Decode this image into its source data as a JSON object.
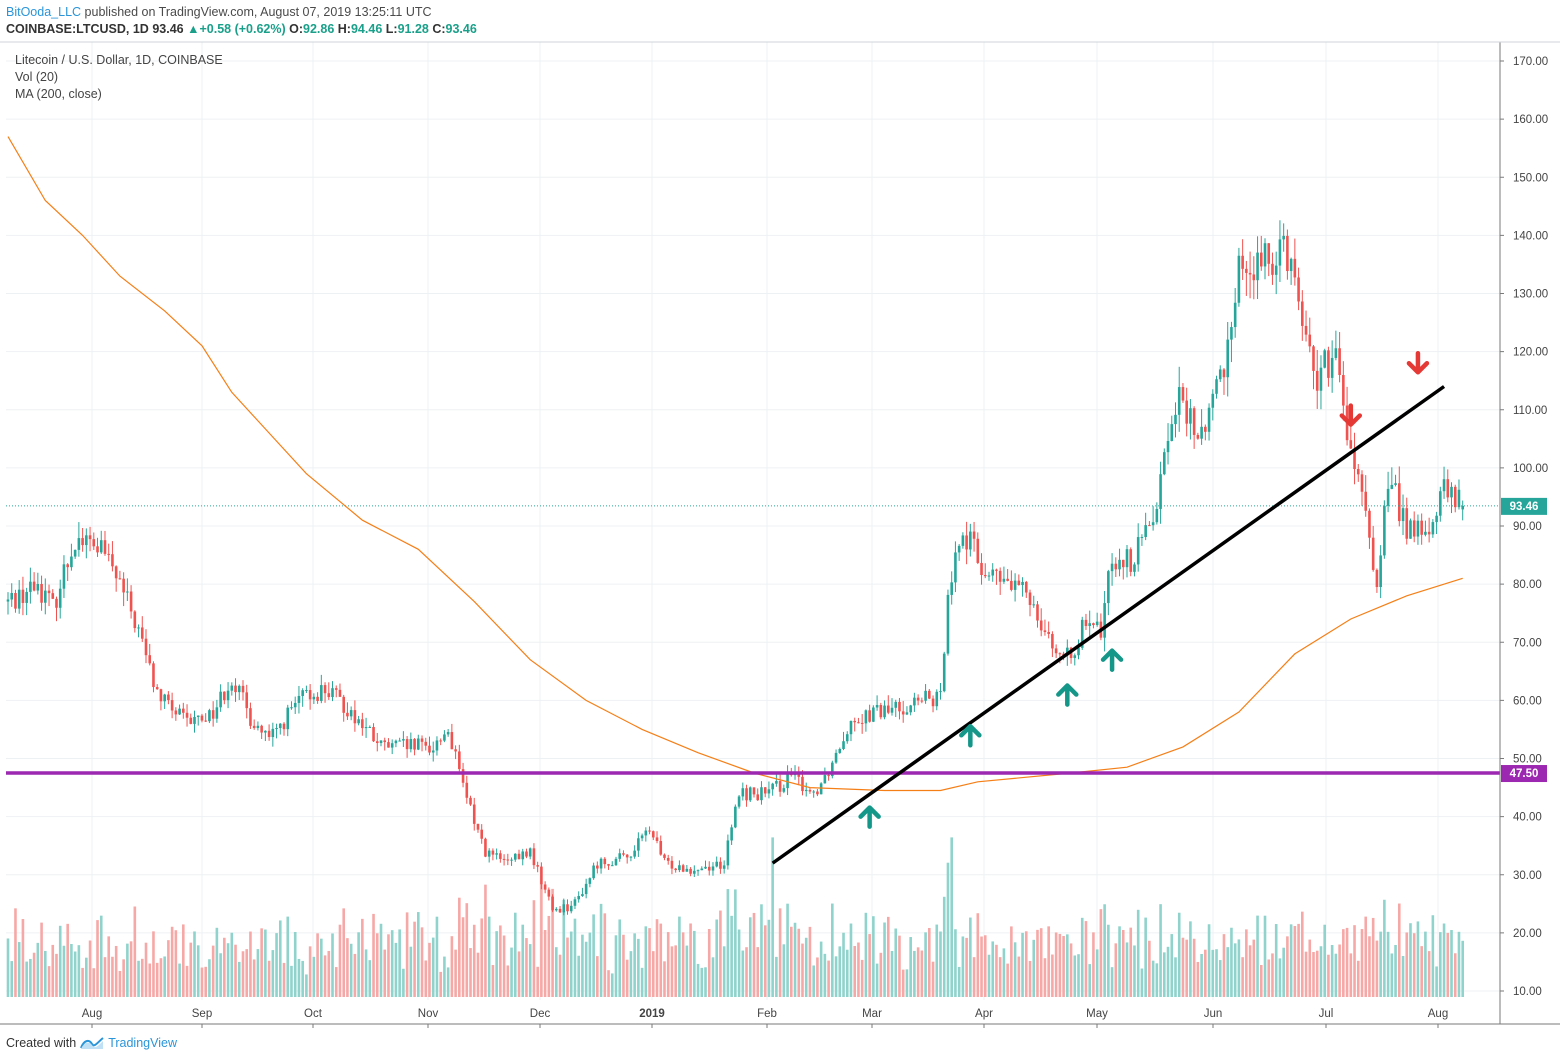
{
  "header": {
    "author": "BitOoda_LLC",
    "published_text": "published on TradingView.com, August 07, 2019 13:25:11 UTC",
    "symbol": "COINBASE:LTCUSD, 1D",
    "last": "93.46",
    "change": "+0.58 (+0.62%)",
    "open_label": "O:",
    "open": "92.86",
    "high_label": "H:",
    "high": "94.46",
    "low_label": "L:",
    "low": "91.28",
    "close_label": "C:",
    "close": "93.46"
  },
  "legend": {
    "series": "Litecoin / U.S. Dollar, 1D, COINBASE",
    "volume": "Vol (20)",
    "ma": "MA (200, close)"
  },
  "footer": {
    "created_with": "Created with",
    "brand": "TradingView"
  },
  "chart_data": {
    "type": "candlestick",
    "price_axis": {
      "min": 10,
      "max": 170,
      "ticks": [
        10,
        20,
        30,
        40,
        50,
        60,
        70,
        80,
        90,
        100,
        110,
        120,
        130,
        140,
        150,
        160,
        170
      ]
    },
    "x_labels": [
      "Aug",
      "Sep",
      "Oct",
      "Nov",
      "Dec",
      "2019",
      "Feb",
      "Mar",
      "Apr",
      "May",
      "Jun",
      "Jul",
      "Aug"
    ],
    "grid": true,
    "last_price_label": "93.46",
    "support_label": "47.50",
    "support_level": 47.5,
    "anchors": [
      {
        "t": 0,
        "p": 77
      },
      {
        "t": 8,
        "p": 80
      },
      {
        "t": 12,
        "p": 76
      },
      {
        "t": 18,
        "p": 88
      },
      {
        "t": 25,
        "p": 86
      },
      {
        "t": 30,
        "p": 80
      },
      {
        "t": 35,
        "p": 72
      },
      {
        "t": 40,
        "p": 61
      },
      {
        "t": 48,
        "p": 56
      },
      {
        "t": 55,
        "p": 58
      },
      {
        "t": 60,
        "p": 64
      },
      {
        "t": 65,
        "p": 57
      },
      {
        "t": 70,
        "p": 53
      },
      {
        "t": 78,
        "p": 60
      },
      {
        "t": 85,
        "p": 62
      },
      {
        "t": 92,
        "p": 58
      },
      {
        "t": 100,
        "p": 52
      },
      {
        "t": 108,
        "p": 52
      },
      {
        "t": 114,
        "p": 52
      },
      {
        "t": 118,
        "p": 55
      },
      {
        "t": 122,
        "p": 45
      },
      {
        "t": 128,
        "p": 34
      },
      {
        "t": 134,
        "p": 32
      },
      {
        "t": 140,
        "p": 34
      },
      {
        "t": 146,
        "p": 24
      },
      {
        "t": 152,
        "p": 25
      },
      {
        "t": 158,
        "p": 32
      },
      {
        "t": 166,
        "p": 33
      },
      {
        "t": 172,
        "p": 38
      },
      {
        "t": 176,
        "p": 32
      },
      {
        "t": 184,
        "p": 31
      },
      {
        "t": 192,
        "p": 32
      },
      {
        "t": 196,
        "p": 44
      },
      {
        "t": 204,
        "p": 44
      },
      {
        "t": 210,
        "p": 47
      },
      {
        "t": 216,
        "p": 44
      },
      {
        "t": 220,
        "p": 48
      },
      {
        "t": 226,
        "p": 57
      },
      {
        "t": 234,
        "p": 58
      },
      {
        "t": 240,
        "p": 59
      },
      {
        "t": 246,
        "p": 60
      },
      {
        "t": 250,
        "p": 60
      },
      {
        "t": 252,
        "p": 80
      },
      {
        "t": 256,
        "p": 89
      },
      {
        "t": 262,
        "p": 82
      },
      {
        "t": 268,
        "p": 80
      },
      {
        "t": 274,
        "p": 78
      },
      {
        "t": 280,
        "p": 70
      },
      {
        "t": 283,
        "p": 66
      },
      {
        "t": 288,
        "p": 72
      },
      {
        "t": 293,
        "p": 72
      },
      {
        "t": 296,
        "p": 85
      },
      {
        "t": 302,
        "p": 84
      },
      {
        "t": 308,
        "p": 95
      },
      {
        "t": 313,
        "p": 112
      },
      {
        "t": 320,
        "p": 105
      },
      {
        "t": 326,
        "p": 118
      },
      {
        "t": 330,
        "p": 135
      },
      {
        "t": 336,
        "p": 134
      },
      {
        "t": 342,
        "p": 140
      },
      {
        "t": 346,
        "p": 130
      },
      {
        "t": 350,
        "p": 116
      },
      {
        "t": 356,
        "p": 118
      },
      {
        "t": 360,
        "p": 103
      },
      {
        "t": 364,
        "p": 91
      },
      {
        "t": 367,
        "p": 80
      },
      {
        "t": 370,
        "p": 98
      },
      {
        "t": 375,
        "p": 90
      },
      {
        "t": 380,
        "p": 88
      },
      {
        "t": 385,
        "p": 96
      },
      {
        "t": 390,
        "p": 93.46
      }
    ],
    "ma200": [
      {
        "t": 0,
        "p": 157
      },
      {
        "t": 10,
        "p": 146
      },
      {
        "t": 20,
        "p": 140
      },
      {
        "t": 30,
        "p": 133
      },
      {
        "t": 42,
        "p": 127
      },
      {
        "t": 52,
        "p": 121
      },
      {
        "t": 60,
        "p": 113
      },
      {
        "t": 70,
        "p": 106
      },
      {
        "t": 80,
        "p": 99
      },
      {
        "t": 95,
        "p": 91
      },
      {
        "t": 110,
        "p": 86
      },
      {
        "t": 125,
        "p": 77
      },
      {
        "t": 140,
        "p": 67
      },
      {
        "t": 155,
        "p": 60
      },
      {
        "t": 170,
        "p": 55
      },
      {
        "t": 185,
        "p": 51
      },
      {
        "t": 200,
        "p": 47.5
      },
      {
        "t": 215,
        "p": 45
      },
      {
        "t": 235,
        "p": 44.5
      },
      {
        "t": 250,
        "p": 44.5
      },
      {
        "t": 260,
        "p": 46
      },
      {
        "t": 285,
        "p": 47.5
      },
      {
        "t": 300,
        "p": 48.5
      },
      {
        "t": 315,
        "p": 52
      },
      {
        "t": 330,
        "p": 58
      },
      {
        "t": 345,
        "p": 68
      },
      {
        "t": 360,
        "p": 74
      },
      {
        "t": 375,
        "p": 78
      },
      {
        "t": 390,
        "p": 81
      }
    ],
    "trendline": {
      "from": {
        "t": 205,
        "p": 32
      },
      "to": {
        "t": 385,
        "p": 114
      }
    },
    "arrows": [
      {
        "dir": "up",
        "t": 231,
        "p": 40
      },
      {
        "dir": "up",
        "t": 258,
        "p": 54
      },
      {
        "dir": "up",
        "t": 284,
        "p": 61
      },
      {
        "dir": "up",
        "t": 296,
        "p": 67
      },
      {
        "dir": "down",
        "t": 360,
        "p": 109
      },
      {
        "dir": "down",
        "t": 378,
        "p": 118
      }
    ],
    "colors": {
      "up": "#26a69a",
      "down": "#ef5350",
      "up_vol": "#8fd3cc",
      "down_vol": "#f6a8a6",
      "ma": "#f57f17",
      "support": "#9c27b0",
      "trend": "#000000",
      "arrow_up": "#149688",
      "arrow_down": "#e53935",
      "last": "#26a69a"
    }
  }
}
